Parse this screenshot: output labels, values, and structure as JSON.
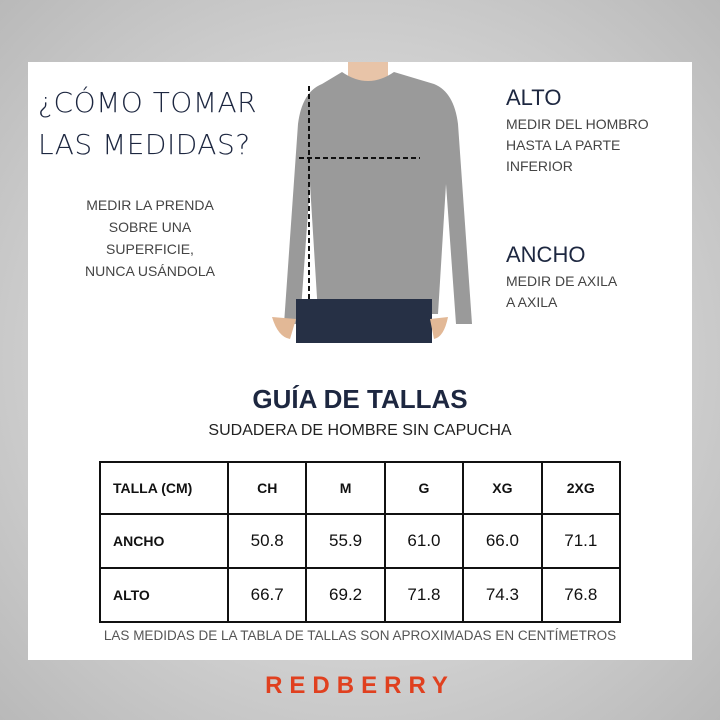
{
  "intro": {
    "title_line1": "¿CÓMO TOMAR",
    "title_line2": "LAS MEDIDAS?",
    "note_lines": [
      "MEDIR LA PRENDA",
      "SOBRE UNA",
      "SUPERFICIE,",
      "NUNCA USÁNDOLA"
    ]
  },
  "measures": {
    "alto": {
      "heading": "ALTO",
      "lines": [
        "MEDIR DEL HOMBRO",
        "HASTA LA PARTE",
        "INFERIOR"
      ]
    },
    "ancho": {
      "heading": "ANCHO",
      "lines": [
        "MEDIR DE AXILA",
        "A AXILA"
      ]
    }
  },
  "guide": {
    "title": "GUÍA DE TALLAS",
    "subtitle": "SUDADERA DE HOMBRE SIN CAPUCHA",
    "table": {
      "header": [
        "TALLA (CM)",
        "CH",
        "M",
        "G",
        "XG",
        "2XG"
      ],
      "rows": [
        [
          "ANCHO",
          "50.8",
          "55.9",
          "61.0",
          "66.0",
          "71.1"
        ],
        [
          "ALTO",
          "66.7",
          "69.2",
          "71.8",
          "74.3",
          "76.8"
        ]
      ]
    },
    "footnote": "LAS MEDIDAS DE LA TABLA DE TALLAS SON APROXIMADAS EN CENTÍMETROS"
  },
  "brand": {
    "logo_text": "REDBERRY",
    "color": "#e0401f"
  },
  "colors": {
    "title": "#1d2740",
    "sweater": "#9a9a9a"
  }
}
